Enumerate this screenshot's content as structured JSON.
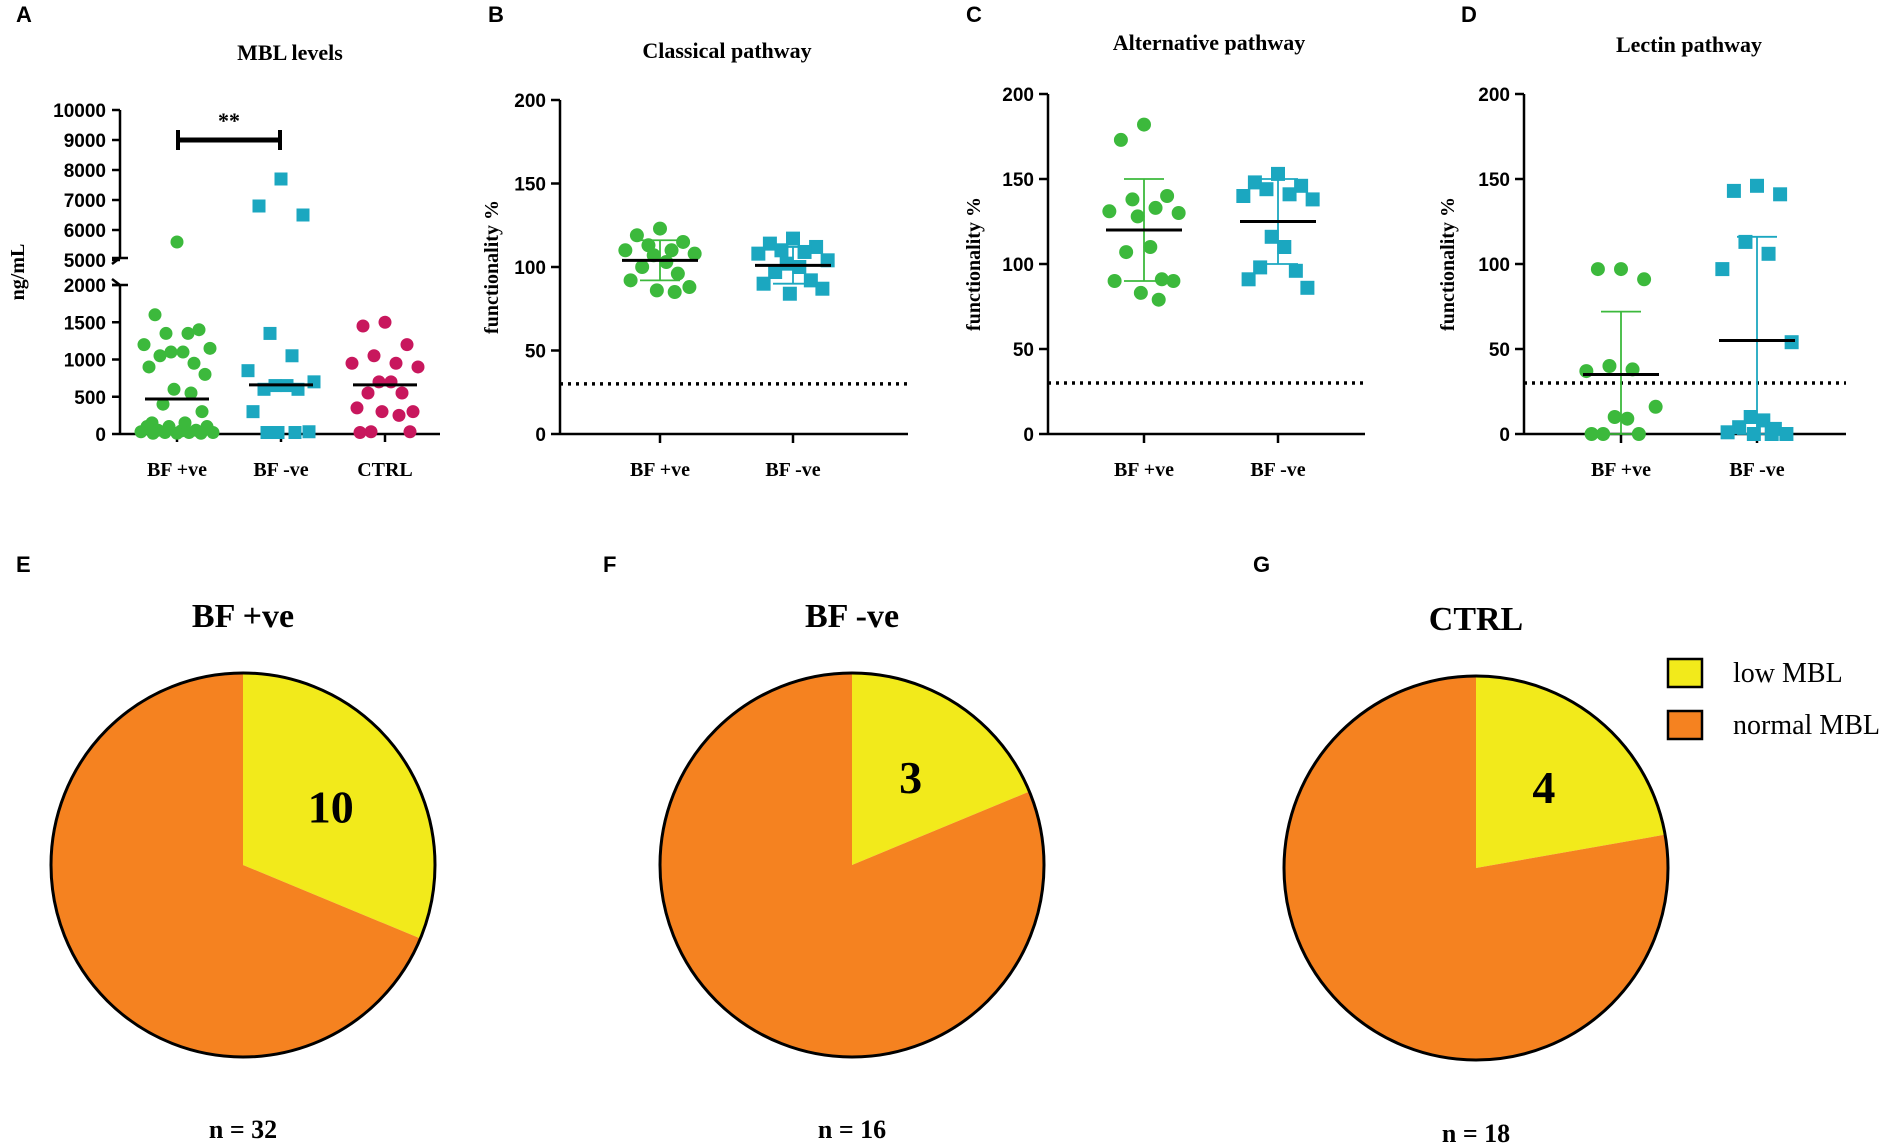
{
  "chart_data": [
    {
      "panel": "A",
      "type": "scatter",
      "title": "MBL levels",
      "ylabel": "ng/mL",
      "xlabel": "",
      "categories": [
        "BF +ve",
        "BF -ve",
        "CTRL"
      ],
      "y_upper_ticks": [
        "5000",
        "6000",
        "7000",
        "8000",
        "9000",
        "10000"
      ],
      "y_lower_ticks": [
        "0",
        "500",
        "1000",
        "1500",
        "2000"
      ],
      "ylim_lower": [
        0,
        2000
      ],
      "ylim_upper": [
        5000,
        10000
      ],
      "significance": "**",
      "series": [
        {
          "name": "BF +ve",
          "marker": "circle",
          "color": "#3cb93c",
          "mean": 470,
          "values": [
            5600,
            1600,
            1400,
            1350,
            1350,
            1200,
            1150,
            1100,
            1100,
            1050,
            950,
            900,
            800,
            600,
            550,
            400,
            300,
            150,
            150,
            100,
            100,
            100,
            50,
            50,
            40,
            30,
            20,
            20,
            20,
            10,
            10,
            10
          ]
        },
        {
          "name": "BF -ve",
          "marker": "square",
          "color": "#1ba7c0",
          "mean": 660,
          "values": [
            7700,
            6800,
            6500,
            1350,
            1050,
            850,
            700,
            650,
            650,
            600,
            600,
            300,
            30,
            20,
            20,
            20
          ]
        },
        {
          "name": "CTRL",
          "marker": "circle",
          "color": "#c8175d",
          "mean": 660,
          "values": [
            1500,
            1450,
            1200,
            1050,
            950,
            950,
            900,
            700,
            700,
            550,
            550,
            350,
            300,
            300,
            250,
            30,
            30,
            20
          ]
        }
      ]
    },
    {
      "panel": "B",
      "type": "scatter",
      "title": "Classical pathway",
      "ylabel": "functionality %",
      "categories": [
        "BF +ve",
        "BF -ve"
      ],
      "y_ticks": [
        "0",
        "50",
        "100",
        "150",
        "200"
      ],
      "ylim": [
        0,
        200
      ],
      "threshold": 30,
      "series": [
        {
          "name": "BF +ve",
          "marker": "circle",
          "color": "#3cb93c",
          "mean": 104,
          "sd": 12,
          "values": [
            123,
            119,
            115,
            113,
            110,
            110,
            108,
            107,
            103,
            100,
            96,
            92,
            88,
            86,
            85
          ]
        },
        {
          "name": "BF -ve",
          "marker": "square",
          "color": "#1ba7c0",
          "mean": 101,
          "sd": 11,
          "values": [
            117,
            114,
            112,
            110,
            109,
            108,
            104,
            102,
            100,
            97,
            92,
            90,
            87,
            84
          ]
        }
      ]
    },
    {
      "panel": "C",
      "type": "scatter",
      "title": "Alternative pathway",
      "ylabel": "functionality %",
      "categories": [
        "BF +ve",
        "BF -ve"
      ],
      "y_ticks": [
        "0",
        "50",
        "100",
        "150",
        "200"
      ],
      "ylim": [
        0,
        200
      ],
      "threshold": 30,
      "series": [
        {
          "name": "BF +ve",
          "marker": "circle",
          "color": "#3cb93c",
          "mean": 120,
          "sd": 30,
          "values": [
            182,
            173,
            140,
            138,
            133,
            131,
            130,
            128,
            110,
            107,
            91,
            90,
            90,
            83,
            79
          ]
        },
        {
          "name": "BF -ve",
          "marker": "square",
          "color": "#1ba7c0",
          "mean": 125,
          "sd": 25,
          "values": [
            153,
            148,
            146,
            144,
            141,
            140,
            138,
            116,
            110,
            98,
            96,
            91,
            86
          ]
        }
      ]
    },
    {
      "panel": "D",
      "type": "scatter",
      "title": "Lectin pathway",
      "ylabel": "functionality %",
      "categories": [
        "BF +ve",
        "BF -ve"
      ],
      "y_ticks": [
        "0",
        "50",
        "100",
        "150",
        "200"
      ],
      "ylim": [
        0,
        200
      ],
      "threshold": 30,
      "series": [
        {
          "name": "BF +ve",
          "marker": "circle",
          "color": "#3cb93c",
          "mean": 35,
          "sd": 37,
          "values": [
            97,
            97,
            91,
            40,
            38,
            37,
            16,
            10,
            9,
            0,
            0,
            0
          ]
        },
        {
          "name": "BF -ve",
          "marker": "square",
          "color": "#1ba7c0",
          "mean": 55,
          "sd": 61,
          "values": [
            146,
            143,
            141,
            113,
            106,
            97,
            54,
            10,
            8,
            4,
            3,
            1,
            0,
            0,
            0
          ]
        }
      ]
    },
    {
      "panel": "E",
      "type": "pie",
      "title": "BF +ve",
      "n_label": "n = 32",
      "slices": [
        {
          "label": "low MBL",
          "value": 10,
          "color": "#f2ea1b",
          "shown": "10"
        },
        {
          "label": "normal MBL",
          "value": 22,
          "color": "#f58220",
          "shown": ""
        }
      ]
    },
    {
      "panel": "F",
      "type": "pie",
      "title": "BF -ve",
      "n_label": "n = 16",
      "slices": [
        {
          "label": "low MBL",
          "value": 3,
          "color": "#f2ea1b",
          "shown": "3"
        },
        {
          "label": "normal MBL",
          "value": 13,
          "color": "#f58220",
          "shown": ""
        }
      ]
    },
    {
      "panel": "G",
      "type": "pie",
      "title": "CTRL",
      "n_label": "n = 18",
      "slices": [
        {
          "label": "low MBL",
          "value": 4,
          "color": "#f2ea1b",
          "shown": "4"
        },
        {
          "label": "normal MBL",
          "value": 14,
          "color": "#f58220",
          "shown": ""
        }
      ]
    }
  ],
  "legend": [
    {
      "label": "low MBL",
      "color": "#f2ea1b"
    },
    {
      "label": "normal MBL",
      "color": "#f58220"
    }
  ]
}
